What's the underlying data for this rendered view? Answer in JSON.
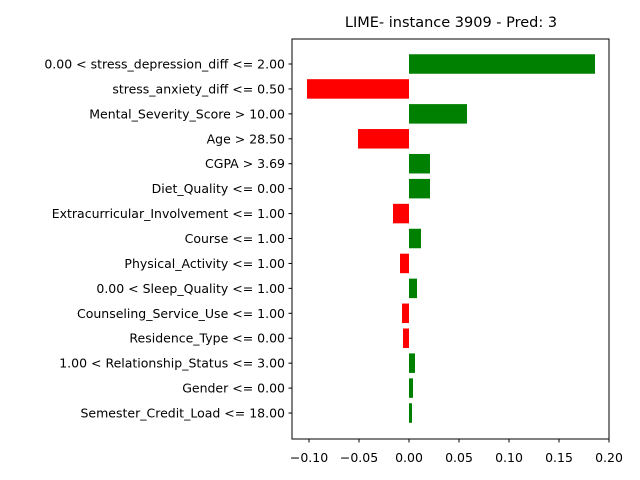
{
  "chart_data": {
    "type": "bar",
    "orientation": "horizontal",
    "title": "LIME- instance 3909 - Pred: 3",
    "xlabel": "",
    "ylabel": "",
    "xlim": [
      -0.117,
      0.2
    ],
    "xticks": [
      -0.1,
      -0.05,
      0.0,
      0.05,
      0.1,
      0.15,
      0.2
    ],
    "xtick_labels": [
      "−0.10",
      "−0.05",
      "0.00",
      "0.05",
      "0.10",
      "0.15",
      "0.20"
    ],
    "positive_color": "#008000",
    "negative_color": "#ff0000",
    "categories": [
      "0.00 < stress_depression_diff <= 2.00",
      "stress_anxiety_diff <= 0.50",
      "Mental_Severity_Score > 10.00",
      "Age > 28.50",
      "CGPA > 3.69",
      "Diet_Quality <= 0.00",
      "Extracurricular_Involvement <= 1.00",
      "Course <= 1.00",
      "Physical_Activity <= 1.00",
      "0.00 < Sleep_Quality <= 1.00",
      "Counseling_Service_Use <= 1.00",
      "Residence_Type <= 0.00",
      "1.00 < Relationship_Status <= 3.00",
      "Gender <= 0.00",
      "Semester_Credit_Load <= 18.00"
    ],
    "values": [
      0.186,
      -0.102,
      0.058,
      -0.051,
      0.021,
      0.021,
      -0.016,
      0.012,
      -0.009,
      0.008,
      -0.007,
      -0.006,
      0.006,
      0.004,
      0.003
    ]
  }
}
